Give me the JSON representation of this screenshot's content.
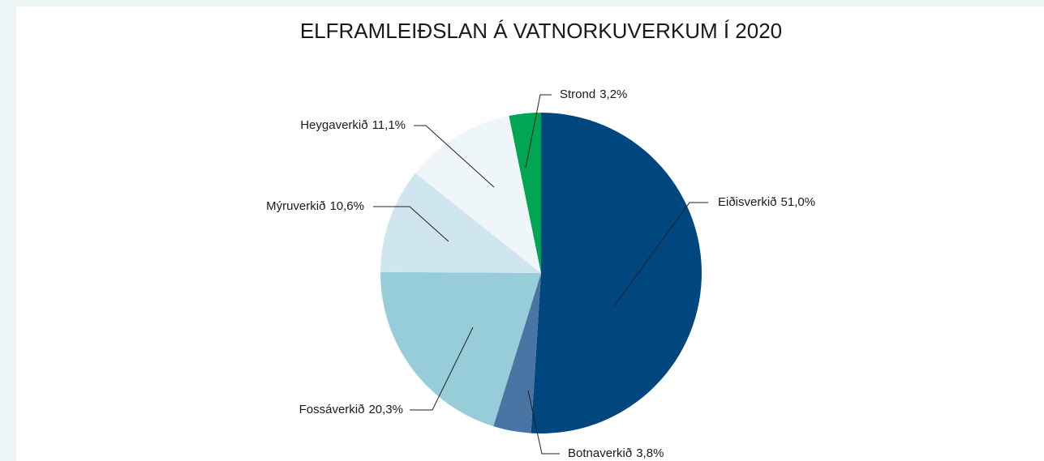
{
  "chart_data": {
    "type": "pie",
    "title": "ELFRAMLEIÐSLAN Á VATNORKUVERKUM Í 2020",
    "categories": [
      "Eiðisverkið",
      "Botnaverkið",
      "Fossáverkið",
      "Mýruverkið",
      "Heygaverkið",
      "Strond"
    ],
    "values": [
      51.0,
      3.8,
      20.3,
      10.6,
      11.1,
      3.2
    ],
    "value_labels": [
      "51,0%",
      "3,8%",
      "20,3%",
      "10,6%",
      "11,1%",
      "3,2%"
    ],
    "colors": [
      "#00467f",
      "#4a74a4",
      "#96cdd8",
      "#cfe6f1",
      "#eef6fa",
      "#00a651"
    ]
  }
}
